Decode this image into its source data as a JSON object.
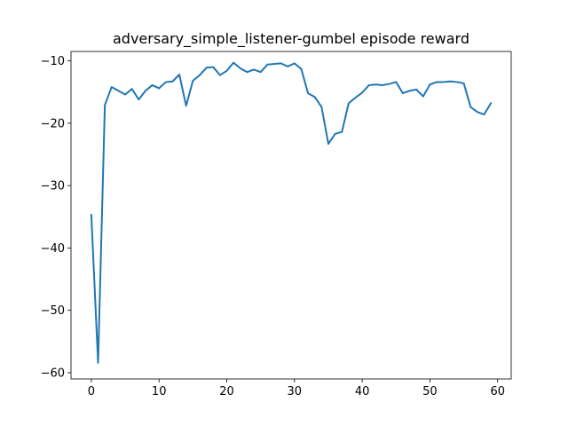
{
  "chart_data": {
    "type": "line",
    "title": "adversary_simple_listener-gumbel episode reward",
    "xlabel": "",
    "ylabel": "",
    "xlim": [
      -3,
      62
    ],
    "ylim": [
      -61,
      -8.5
    ],
    "xticks": [
      0,
      10,
      20,
      30,
      40,
      50,
      60
    ],
    "yticks": [
      -60,
      -50,
      -40,
      -30,
      -20,
      -10
    ],
    "grid": false,
    "legend": "none",
    "series": [
      {
        "color": "#1f77b4",
        "x": [
          0,
          1,
          2,
          3,
          4,
          5,
          6,
          7,
          8,
          9,
          10,
          11,
          12,
          13,
          14,
          15,
          16,
          17,
          18,
          19,
          20,
          21,
          22,
          23,
          24,
          25,
          26,
          27,
          28,
          29,
          30,
          31,
          32,
          33,
          34,
          35,
          36,
          37,
          38,
          39,
          40,
          41,
          42,
          43,
          44,
          45,
          46,
          47,
          48,
          49,
          50,
          51,
          52,
          53,
          54,
          55,
          56,
          57,
          58,
          59
        ],
        "y": [
          -34.7,
          -58.4,
          -17.1,
          -14.2,
          -14.8,
          -15.4,
          -14.5,
          -16.2,
          -14.8,
          -13.9,
          -14.4,
          -13.4,
          -13.3,
          -12.2,
          -17.2,
          -13.2,
          -12.3,
          -11.1,
          -11.0,
          -12.3,
          -11.6,
          -10.3,
          -11.2,
          -11.8,
          -11.4,
          -11.8,
          -10.6,
          -10.5,
          -10.4,
          -10.9,
          -10.4,
          -11.3,
          -15.2,
          -15.8,
          -17.4,
          -23.3,
          -21.7,
          -21.4,
          -16.8,
          -15.9,
          -15.1,
          -13.9,
          -13.8,
          -13.9,
          -13.7,
          -13.4,
          -15.2,
          -14.8,
          -14.6,
          -15.7,
          -13.8,
          -13.4,
          -13.4,
          -13.3,
          -13.4,
          -13.6,
          -17.4,
          -18.2,
          -18.6,
          -16.8
        ]
      }
    ]
  }
}
